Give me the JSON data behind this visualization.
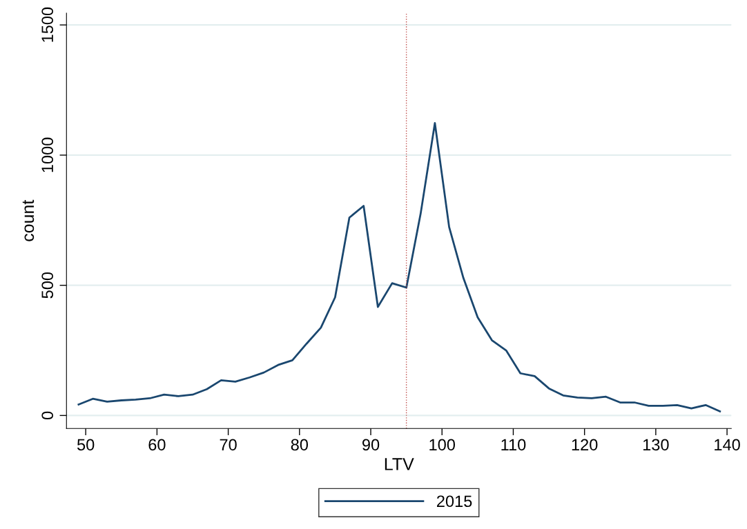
{
  "chart_data": {
    "type": "line",
    "xlabel": "LTV",
    "ylabel": "count",
    "x": [
      49,
      51,
      53,
      55,
      57,
      59,
      61,
      63,
      65,
      67,
      69,
      71,
      73,
      75,
      77,
      79,
      81,
      83,
      85,
      87,
      89,
      91,
      93,
      95,
      97,
      99,
      101,
      103,
      105,
      107,
      109,
      111,
      113,
      115,
      117,
      119,
      121,
      123,
      125,
      127,
      129,
      131,
      133,
      135,
      137,
      139
    ],
    "series": [
      {
        "name": "2015",
        "color": "#1a476f",
        "values": [
          42,
          64,
          53,
          58,
          61,
          66,
          80,
          74,
          80,
          101,
          135,
          130,
          146,
          165,
          194,
          212,
          276,
          337,
          454,
          760,
          805,
          417,
          508,
          491,
          775,
          1123,
          724,
          528,
          377,
          289,
          250,
          162,
          151,
          104,
          77,
          69,
          66,
          72,
          50,
          50,
          37,
          37,
          40,
          27,
          40,
          16
        ]
      }
    ],
    "xlim": [
      47.3,
      140.6
    ],
    "ylim": [
      -50,
      1545
    ],
    "xticks": [
      50,
      60,
      70,
      80,
      90,
      100,
      110,
      120,
      130,
      140
    ],
    "yticks": [
      0,
      500,
      1000,
      1500
    ],
    "grid": "y",
    "legend": "bottom",
    "marker": "none",
    "line_style": "solid",
    "ref_lines": [
      {
        "axis": "x",
        "value": 95,
        "label": null,
        "color": "#c0504d",
        "line_style": "dotted"
      }
    ]
  }
}
